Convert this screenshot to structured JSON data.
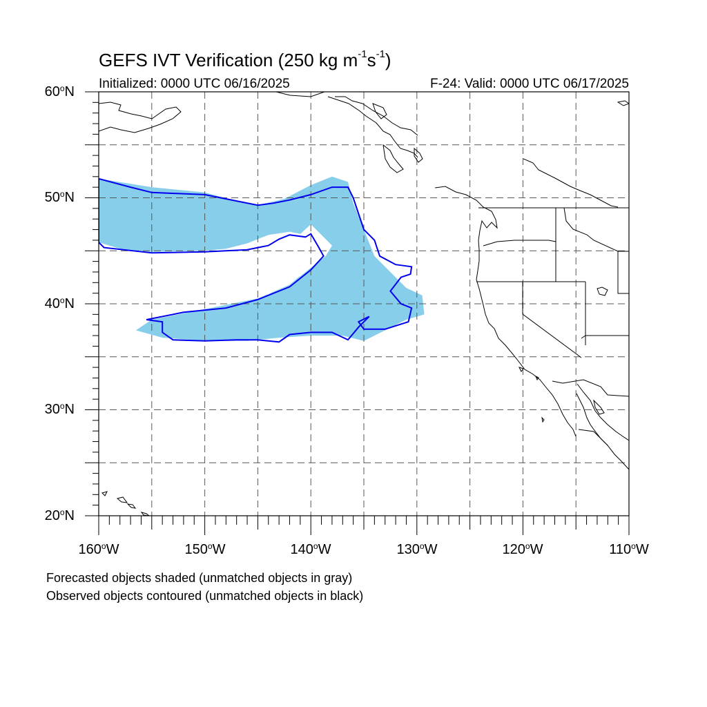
{
  "title": {
    "main": "GEFS IVT Verification (250 kg m",
    "sup1": "-1",
    "mid": "s",
    "sup2": "-1",
    "end": ")"
  },
  "initialized": "Initialized: 0000 UTC 06/16/2025",
  "valid": "F-24: Valid: 0000 UTC 06/17/2025",
  "lat_labels": [
    {
      "num": "60",
      "deg": "o",
      "hem": "N"
    },
    {
      "num": "50",
      "deg": "o",
      "hem": "N"
    },
    {
      "num": "40",
      "deg": "o",
      "hem": "N"
    },
    {
      "num": "30",
      "deg": "o",
      "hem": "N"
    },
    {
      "num": "20",
      "deg": "o",
      "hem": "N"
    }
  ],
  "lon_labels": [
    {
      "num": "160",
      "deg": "o",
      "hem": "W"
    },
    {
      "num": "150",
      "deg": "o",
      "hem": "W"
    },
    {
      "num": "140",
      "deg": "o",
      "hem": "W"
    },
    {
      "num": "130",
      "deg": "o",
      "hem": "W"
    },
    {
      "num": "120",
      "deg": "o",
      "hem": "W"
    },
    {
      "num": "110",
      "deg": "o",
      "hem": "W"
    }
  ],
  "notes": {
    "forecast": "Forecasted objects shaded (unmatched objects in gray)",
    "observed": "Observed objects contoured (unmatched objects in black)"
  },
  "map": {
    "lon_range": [
      -160,
      -110
    ],
    "lat_range": [
      20,
      60
    ],
    "grid_interval_deg": 5,
    "forecast_color": "#87ceeb",
    "observed_color": "#0000ee",
    "forecast_object": [
      [
        -160,
        51.8
      ],
      [
        -155,
        51
      ],
      [
        -150,
        50.5
      ],
      [
        -147,
        49.7
      ],
      [
        -145,
        49.3
      ],
      [
        -142.5,
        49.9
      ],
      [
        -140,
        51.2
      ],
      [
        -138,
        52
      ],
      [
        -136.5,
        51.5
      ],
      [
        -136,
        49.5
      ],
      [
        -135,
        47
      ],
      [
        -134,
        44.5
      ],
      [
        -132.5,
        43
      ],
      [
        -131,
        41.5
      ],
      [
        -129.5,
        40.8
      ],
      [
        -129.3,
        39
      ],
      [
        -131,
        38.5
      ],
      [
        -133,
        37.5
      ],
      [
        -135,
        36.5
      ],
      [
        -137,
        37
      ],
      [
        -140,
        37
      ],
      [
        -143,
        36.8
      ],
      [
        -146,
        36.5
      ],
      [
        -150,
        36.5
      ],
      [
        -154,
        36.8
      ],
      [
        -156.5,
        37.5
      ],
      [
        -155,
        38.5
      ],
      [
        -150,
        39.5
      ],
      [
        -145,
        40.5
      ],
      [
        -142,
        41.8
      ],
      [
        -140,
        43.5
      ],
      [
        -139.4,
        45
      ],
      [
        -139.5,
        46
      ],
      [
        -140.5,
        46.5
      ],
      [
        -142,
        46.8
      ],
      [
        -144,
        46.5
      ],
      [
        -146,
        45.7
      ],
      [
        -148,
        45.2
      ],
      [
        -150,
        45
      ],
      [
        -155,
        44.9
      ],
      [
        -158,
        45.2
      ],
      [
        -160,
        45.8
      ]
    ],
    "observed_object": [
      [
        -160,
        51.8
      ],
      [
        -157,
        51
      ],
      [
        -155,
        50.5
      ],
      [
        -150,
        50.3
      ],
      [
        -147,
        49.7
      ],
      [
        -145,
        49.3
      ],
      [
        -143.5,
        49.5
      ],
      [
        -142,
        49.8
      ],
      [
        -140,
        50.3
      ],
      [
        -138,
        51
      ],
      [
        -136.5,
        51
      ],
      [
        -136,
        50
      ],
      [
        -135.5,
        48.5
      ],
      [
        -135,
        47
      ],
      [
        -134,
        46
      ],
      [
        -133.5,
        44.5
      ],
      [
        -132,
        43.7
      ],
      [
        -130.5,
        43.5
      ],
      [
        -130.6,
        42.8
      ],
      [
        -131.5,
        42.5
      ],
      [
        -132.5,
        41.2
      ],
      [
        -131.5,
        40
      ],
      [
        -130.5,
        39.6
      ],
      [
        -130.8,
        38.3
      ],
      [
        -133,
        37.6
      ],
      [
        -135,
        37.6
      ],
      [
        -135.5,
        38.3
      ],
      [
        -134.5,
        38.8
      ],
      [
        -135.5,
        37.8
      ],
      [
        -136.5,
        36.6
      ],
      [
        -138,
        37.3
      ],
      [
        -140,
        37.3
      ],
      [
        -142,
        37.1
      ],
      [
        -143,
        36.4
      ],
      [
        -145,
        36.6
      ],
      [
        -147,
        36.6
      ],
      [
        -150,
        36.5
      ],
      [
        -153,
        36.6
      ],
      [
        -154,
        37.3
      ],
      [
        -154,
        38.3
      ],
      [
        -155.5,
        38.5
      ],
      [
        -152,
        39.2
      ],
      [
        -148,
        39.6
      ],
      [
        -145,
        40.4
      ],
      [
        -142,
        41.6
      ],
      [
        -140,
        43.2
      ],
      [
        -138.8,
        44.5
      ],
      [
        -139.3,
        45.4
      ],
      [
        -140,
        46.6
      ],
      [
        -140.5,
        46.3
      ],
      [
        -142,
        46.5
      ],
      [
        -143,
        46.1
      ],
      [
        -144,
        45.5
      ],
      [
        -146,
        45.1
      ],
      [
        -148,
        45
      ],
      [
        -150,
        44.9
      ],
      [
        -155,
        44.8
      ],
      [
        -159.5,
        45.3
      ],
      [
        -160,
        45.8
      ]
    ],
    "inner_hole": [
      [
        -140,
        47.5
      ],
      [
        -139,
        46.5
      ],
      [
        -138,
        45.5
      ],
      [
        -138.6,
        44.5
      ],
      [
        -141,
        42.6
      ],
      [
        -144,
        40.9
      ],
      [
        -148,
        40.1
      ]
    ]
  }
}
